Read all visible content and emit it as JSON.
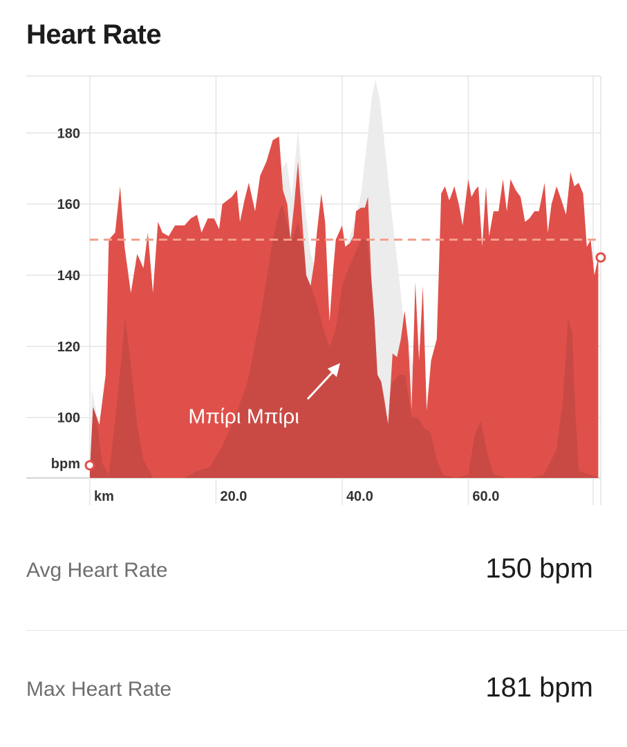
{
  "header": {
    "title": "Heart Rate"
  },
  "chart_data": {
    "type": "area",
    "title": "Heart Rate",
    "xlabel": "km",
    "ylabel": "bpm",
    "xlim": [
      0,
      81
    ],
    "ylim": [
      83,
      196
    ],
    "y_ticks": [
      100,
      120,
      140,
      160,
      180
    ],
    "x_ticks": [
      20,
      40,
      60
    ],
    "x_tick_labels": [
      "20.0",
      "40.0",
      "60.0"
    ],
    "reference_line": {
      "value": 150
    },
    "annotation": {
      "text": "Μπίρι Μπίρι",
      "x": 40
    },
    "series": [
      {
        "role": "heart_rate",
        "color": "#e0504a",
        "points": [
          [
            0,
            85
          ],
          [
            0.5,
            103
          ],
          [
            1.5,
            98
          ],
          [
            2.5,
            112
          ],
          [
            3,
            150
          ],
          [
            4,
            152
          ],
          [
            4.8,
            165
          ],
          [
            5.5,
            148
          ],
          [
            6.5,
            135
          ],
          [
            7.5,
            146
          ],
          [
            8.5,
            142
          ],
          [
            9.2,
            152
          ],
          [
            10,
            135
          ],
          [
            10.8,
            155
          ],
          [
            11.5,
            152
          ],
          [
            12.5,
            151
          ],
          [
            13.5,
            154
          ],
          [
            15,
            154
          ],
          [
            16,
            156
          ],
          [
            17,
            157
          ],
          [
            17.7,
            152
          ],
          [
            18.7,
            156
          ],
          [
            19.7,
            156
          ],
          [
            20.5,
            153
          ],
          [
            21,
            160
          ],
          [
            22.5,
            162
          ],
          [
            23.3,
            164
          ],
          [
            23.8,
            155
          ],
          [
            24.5,
            161
          ],
          [
            25.2,
            166
          ],
          [
            26.2,
            158
          ],
          [
            27,
            168
          ],
          [
            28,
            172
          ],
          [
            29,
            178
          ],
          [
            30,
            179
          ],
          [
            30.6,
            164
          ],
          [
            31.3,
            160
          ],
          [
            31.8,
            150
          ],
          [
            32.4,
            160
          ],
          [
            33,
            172
          ],
          [
            33.8,
            152
          ],
          [
            34.3,
            140
          ],
          [
            35,
            137
          ],
          [
            35.6,
            144
          ],
          [
            36,
            152
          ],
          [
            36.7,
            163
          ],
          [
            37.3,
            155
          ],
          [
            38,
            127
          ],
          [
            38.6,
            142
          ],
          [
            39,
            150
          ],
          [
            40,
            154
          ],
          [
            40.5,
            148
          ],
          [
            41.2,
            149
          ],
          [
            41.8,
            151
          ],
          [
            42.2,
            158
          ],
          [
            43,
            159
          ],
          [
            43.6,
            159
          ],
          [
            44.1,
            162
          ],
          [
            44.6,
            140
          ],
          [
            45.1,
            128
          ],
          [
            45.6,
            112
          ],
          [
            46.2,
            110
          ],
          [
            46.7,
            105
          ],
          [
            47.3,
            98
          ],
          [
            48,
            118
          ],
          [
            48.7,
            117
          ],
          [
            49.3,
            122
          ],
          [
            49.9,
            130
          ],
          [
            50.5,
            121
          ],
          [
            51,
            102
          ],
          [
            51.6,
            138
          ],
          [
            52.2,
            116
          ],
          [
            52.8,
            137
          ],
          [
            53.4,
            102
          ],
          [
            54.1,
            116
          ],
          [
            55,
            122
          ],
          [
            55.7,
            163
          ],
          [
            56.3,
            165
          ],
          [
            57,
            161
          ],
          [
            57.8,
            165
          ],
          [
            58.5,
            160
          ],
          [
            59.1,
            154
          ],
          [
            60,
            167
          ],
          [
            60.5,
            162
          ],
          [
            61.1,
            164
          ],
          [
            61.6,
            165
          ],
          [
            62.2,
            148
          ],
          [
            62.8,
            165
          ],
          [
            63.3,
            151
          ],
          [
            64,
            158
          ],
          [
            64.8,
            158
          ],
          [
            65.5,
            167
          ],
          [
            66.1,
            158
          ],
          [
            66.7,
            167
          ],
          [
            67.5,
            164
          ],
          [
            68.3,
            162
          ],
          [
            69,
            155
          ],
          [
            69.7,
            156
          ],
          [
            70.5,
            158
          ],
          [
            71.2,
            158
          ],
          [
            72.1,
            166
          ],
          [
            72.6,
            152
          ],
          [
            73.2,
            160
          ],
          [
            74,
            165
          ],
          [
            74.8,
            161
          ],
          [
            75.5,
            157
          ],
          [
            76.2,
            169
          ],
          [
            76.8,
            165
          ],
          [
            77.5,
            166
          ],
          [
            78.2,
            163
          ],
          [
            78.8,
            148
          ],
          [
            79.4,
            150
          ],
          [
            80,
            140
          ],
          [
            80.6,
            145
          ]
        ]
      },
      {
        "role": "elevation_profile",
        "color": "#ececec",
        "points": [
          [
            0,
            83
          ],
          [
            0.3,
            108
          ],
          [
            1,
            102
          ],
          [
            2,
            87
          ],
          [
            3,
            84
          ],
          [
            4,
            99
          ],
          [
            5,
            117
          ],
          [
            5.6,
            128
          ],
          [
            6.5,
            115
          ],
          [
            7.5,
            98
          ],
          [
            8.5,
            88
          ],
          [
            10,
            83
          ],
          [
            15,
            83
          ],
          [
            17,
            85
          ],
          [
            19,
            86
          ],
          [
            21,
            92
          ],
          [
            23,
            100
          ],
          [
            25,
            110
          ],
          [
            27,
            128
          ],
          [
            29,
            150
          ],
          [
            30,
            158
          ],
          [
            30.5,
            170
          ],
          [
            31.2,
            172
          ],
          [
            32,
            162
          ],
          [
            33,
            181
          ],
          [
            33.8,
            164
          ],
          [
            35,
            146
          ],
          [
            36,
            141
          ],
          [
            37,
            131
          ],
          [
            38,
            123
          ],
          [
            39,
            134
          ],
          [
            40,
            146
          ],
          [
            41,
            150
          ],
          [
            42,
            155
          ],
          [
            43,
            163
          ],
          [
            44,
            178
          ],
          [
            44.7,
            190
          ],
          [
            45.3,
            195
          ],
          [
            46,
            189
          ],
          [
            47,
            172
          ],
          [
            48,
            155
          ],
          [
            49,
            140
          ],
          [
            50,
            123
          ],
          [
            51,
            116
          ],
          [
            52,
            110
          ],
          [
            53,
            104
          ],
          [
            54,
            96
          ],
          [
            55,
            88
          ],
          [
            56,
            84
          ],
          [
            58,
            83
          ],
          [
            60,
            84
          ],
          [
            61,
            95
          ],
          [
            62,
            99
          ],
          [
            63,
            90
          ],
          [
            64,
            84
          ],
          [
            66,
            83
          ],
          [
            70,
            83
          ],
          [
            72,
            84
          ],
          [
            74,
            91
          ],
          [
            75,
            105
          ],
          [
            75.8,
            128
          ],
          [
            76.5,
            124
          ],
          [
            77,
            101
          ],
          [
            77.5,
            85
          ],
          [
            81,
            83
          ]
        ]
      },
      {
        "role": "heart_rate_zone_shadow",
        "color": "#c94a44",
        "points": [
          [
            0,
            83
          ],
          [
            0.3,
            105
          ],
          [
            1,
            100
          ],
          [
            2,
            87
          ],
          [
            3,
            84
          ],
          [
            4,
            99
          ],
          [
            5,
            117
          ],
          [
            5.6,
            128
          ],
          [
            6.5,
            115
          ],
          [
            7.5,
            98
          ],
          [
            8.5,
            88
          ],
          [
            10,
            83
          ],
          [
            15,
            83
          ],
          [
            17,
            85
          ],
          [
            19,
            86
          ],
          [
            21,
            92
          ],
          [
            23,
            100
          ],
          [
            25,
            110
          ],
          [
            27,
            128
          ],
          [
            29,
            150
          ],
          [
            30,
            158
          ],
          [
            30.5,
            160
          ],
          [
            31.2,
            155
          ],
          [
            32,
            150
          ],
          [
            33,
            155
          ],
          [
            33.8,
            148
          ],
          [
            35,
            137
          ],
          [
            36,
            132
          ],
          [
            37,
            125
          ],
          [
            38,
            120
          ],
          [
            39,
            125
          ],
          [
            40,
            137
          ],
          [
            41,
            142
          ],
          [
            42,
            146
          ],
          [
            43,
            150
          ],
          [
            44,
            150
          ],
          [
            45,
            130
          ],
          [
            46,
            112
          ],
          [
            47,
            100
          ],
          [
            48,
            110
          ],
          [
            49,
            112
          ],
          [
            50,
            112
          ],
          [
            51,
            100
          ],
          [
            52,
            100
          ],
          [
            53,
            97
          ],
          [
            54,
            96
          ],
          [
            55,
            88
          ],
          [
            56,
            84
          ],
          [
            58,
            83
          ],
          [
            60,
            84
          ],
          [
            61,
            95
          ],
          [
            62,
            99
          ],
          [
            63,
            90
          ],
          [
            64,
            84
          ],
          [
            66,
            83
          ],
          [
            70,
            83
          ],
          [
            72,
            84
          ],
          [
            74,
            91
          ],
          [
            75,
            105
          ],
          [
            75.8,
            128
          ],
          [
            76.5,
            124
          ],
          [
            77,
            101
          ],
          [
            77.5,
            85
          ],
          [
            81,
            83
          ]
        ]
      }
    ]
  },
  "stats": [
    {
      "label": "Avg Heart Rate",
      "value": "150 bpm"
    },
    {
      "label": "Max Heart Rate",
      "value": "181 bpm"
    }
  ]
}
